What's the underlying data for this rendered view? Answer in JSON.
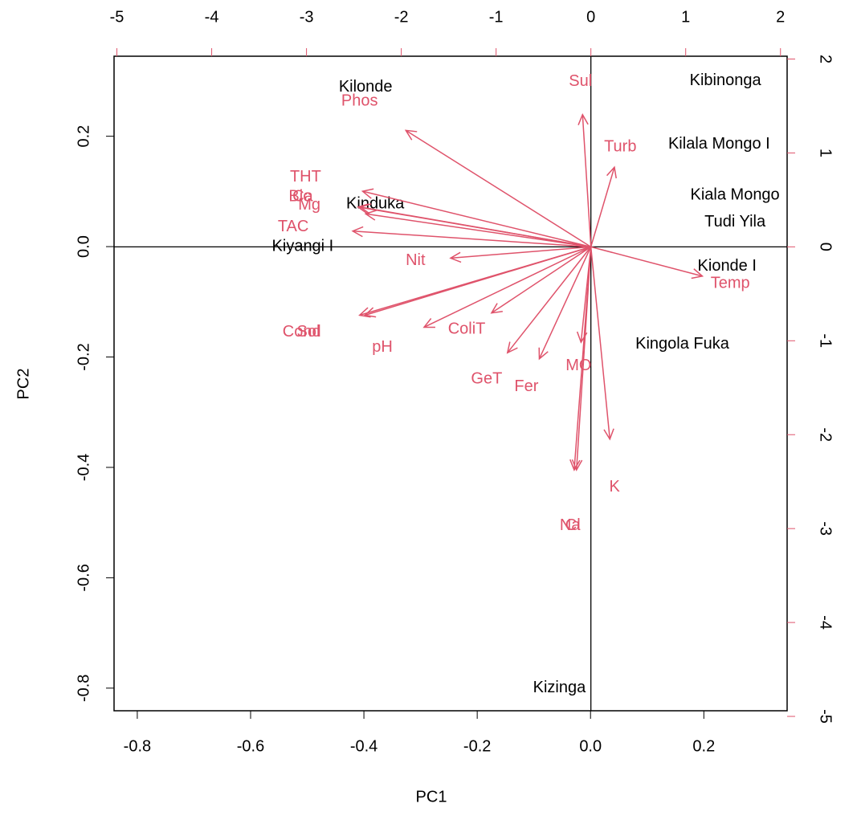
{
  "chart_data": {
    "type": "biplot",
    "xlabel": "PC1",
    "ylabel": "PC2",
    "xlim": [
      -0.841,
      0.347
    ],
    "xticks": [
      -0.8,
      -0.6,
      -0.4,
      -0.2,
      {
        "value": 0,
        "label": "0.0"
      },
      0.2
    ],
    "ylim": [
      -0.841,
      0.345
    ],
    "yticks": [
      -0.8,
      -0.6,
      -0.4,
      -0.2,
      {
        "value": 0,
        "label": "0.0"
      },
      0.2
    ],
    "x2lim": [
      -5.03,
      2.07
    ],
    "x2ticks": [
      -5,
      -4,
      -3,
      -2,
      -1,
      0,
      1,
      2
    ],
    "y2lim": [
      -4.94,
      2.03
    ],
    "y2ticks": [
      -5,
      -4,
      -3,
      -2,
      -1,
      0,
      1,
      2
    ],
    "observations": {
      "color": "#000000",
      "labels": [
        "Kilonde",
        "Kibinonga",
        "Kilala Mongo I",
        "Kiala Mongo",
        "Tudi Yila",
        "Kinduka",
        "Kiyangi I",
        "Kionde I",
        "Kingola Fuka",
        "Kizinga"
      ],
      "x": [
        -0.397,
        0.238,
        0.227,
        0.255,
        0.255,
        -0.38,
        -0.508,
        0.241,
        0.162,
        -0.055
      ],
      "y": [
        0.289,
        0.3,
        0.185,
        0.093,
        0.044,
        0.077,
        0.0,
        -0.036,
        -0.177,
        -0.8
      ]
    },
    "variables": {
      "color": "#DF536B",
      "labels": [
        "Sul",
        "Phos",
        "Turb",
        "THT",
        "Bic",
        "Ca",
        "Mg",
        "TAC",
        "Nit",
        "Cond",
        "Sol",
        "pH",
        "ColiT",
        "GeT",
        "Fer",
        "MO",
        "K",
        "Na",
        "Cl",
        "Temp"
      ],
      "x": [
        -0.11,
        -2.44,
        0.31,
        -3.01,
        -3.07,
        -3.04,
        -2.97,
        -3.14,
        -1.85,
        -3.05,
        -2.98,
        -2.2,
        -1.31,
        -1.1,
        -0.68,
        -0.13,
        0.25,
        -0.22,
        -0.19,
        1.47
      ],
      "y": [
        1.76,
        1.55,
        1.06,
        0.74,
        0.53,
        0.53,
        0.44,
        0.21,
        -0.15,
        -0.91,
        -0.91,
        -1.07,
        -0.88,
        -1.41,
        -1.49,
        -1.27,
        -2.56,
        -2.97,
        -2.97,
        -0.39
      ]
    }
  }
}
